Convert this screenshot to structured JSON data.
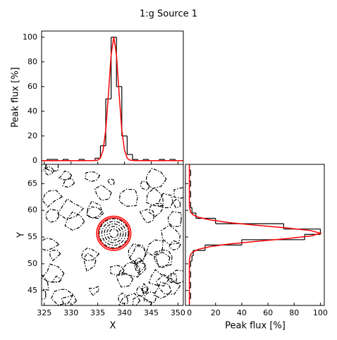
{
  "chart_data": [
    {
      "type": "histogram",
      "title": "1:g Source 1",
      "ylabel": "Peak flux [%]",
      "bins": [
        324.5,
        325.5,
        326.5,
        327.5,
        328.5,
        329.5,
        330.5,
        331.5,
        332.5,
        333.5,
        334.5,
        335.5,
        336.5,
        337.5,
        338.5,
        339.5,
        340.5,
        341.5,
        342.5,
        343.5,
        344.5,
        345.5,
        346.5,
        347.5,
        348.5,
        349.5,
        350.5
      ],
      "values": [
        0,
        1,
        1,
        0,
        1,
        0,
        0,
        1,
        0,
        0,
        2,
        12,
        50,
        100,
        60,
        20,
        5,
        1,
        0,
        1,
        0,
        0,
        1,
        0,
        1,
        0
      ],
      "color": "#000000",
      "fit": {
        "x": [
          324.5,
          330,
          333,
          334,
          335,
          335.5,
          336,
          336.5,
          337,
          337.5,
          338,
          338.5,
          339,
          339.5,
          340,
          340.5,
          341,
          342,
          343,
          346,
          351
        ],
        "values": [
          0,
          0,
          0,
          0,
          0.4,
          2.1,
          8.5,
          24.9,
          54,
          85.7,
          100,
          85.7,
          54,
          24.9,
          8.5,
          2.1,
          0.4,
          0,
          0,
          0,
          0
        ],
        "color": "#ff0000"
      },
      "xlim": [
        324.5,
        351
      ],
      "ylim": [
        -3,
        105
      ],
      "yticks": [
        0,
        20,
        40,
        60,
        80,
        100
      ]
    },
    {
      "type": "contour",
      "xlabel": "X",
      "ylabel": "Y",
      "xlim": [
        324.5,
        351
      ],
      "ylim": [
        42.2,
        68.6
      ],
      "xticks": [
        325,
        330,
        335,
        340,
        345,
        350
      ],
      "yticks": [
        45,
        50,
        55,
        60,
        65
      ],
      "ellipses": [
        {
          "cx": 338,
          "cy": 55.7,
          "r": 3.2
        },
        {
          "cx": 338,
          "cy": 55.7,
          "r": 2.9
        }
      ],
      "ellipse_color": "#ff0000",
      "contour_color": "#000000"
    },
    {
      "type": "histogram",
      "orientation": "horizontal",
      "xlabel": "Peak flux [%]",
      "bins": [
        42.5,
        43.5,
        44.5,
        45.5,
        46.5,
        47.5,
        48.5,
        49.5,
        50.5,
        51.5,
        52.5,
        53.5,
        54.5,
        55.5,
        56.5,
        57.5,
        58.5,
        59.5,
        60.5,
        61.5,
        62.5,
        63.5,
        64.5,
        65.5,
        66.5,
        67.5,
        68.5
      ],
      "values": [
        0,
        1,
        0,
        1,
        0,
        1,
        0,
        1,
        2,
        3,
        12,
        40,
        88,
        100,
        72,
        20,
        5,
        2,
        1,
        0,
        1,
        0,
        1,
        0,
        1,
        0
      ],
      "color": "#000000",
      "fit": {
        "y": [
          42.5,
          48,
          50.7,
          51.7,
          52.2,
          52.7,
          53.2,
          53.7,
          54.2,
          54.7,
          55.2,
          55.7,
          56.2,
          56.7,
          57.2,
          57.7,
          58.2,
          58.7,
          59.2,
          59.7,
          60.7,
          64,
          68.5
        ],
        "values": [
          0,
          0,
          0,
          0.9,
          2.6,
          6.9,
          15.7,
          30.6,
          51.4,
          74.4,
          92.9,
          100,
          92.9,
          74.4,
          51.4,
          30.6,
          15.7,
          6.9,
          2.6,
          0.9,
          0,
          0,
          0
        ],
        "color": "#ff0000"
      },
      "xlim": [
        -3,
        103
      ],
      "ylim": [
        42.2,
        68.6
      ],
      "xticks": [
        0,
        20,
        40,
        60,
        80,
        100
      ]
    }
  ]
}
